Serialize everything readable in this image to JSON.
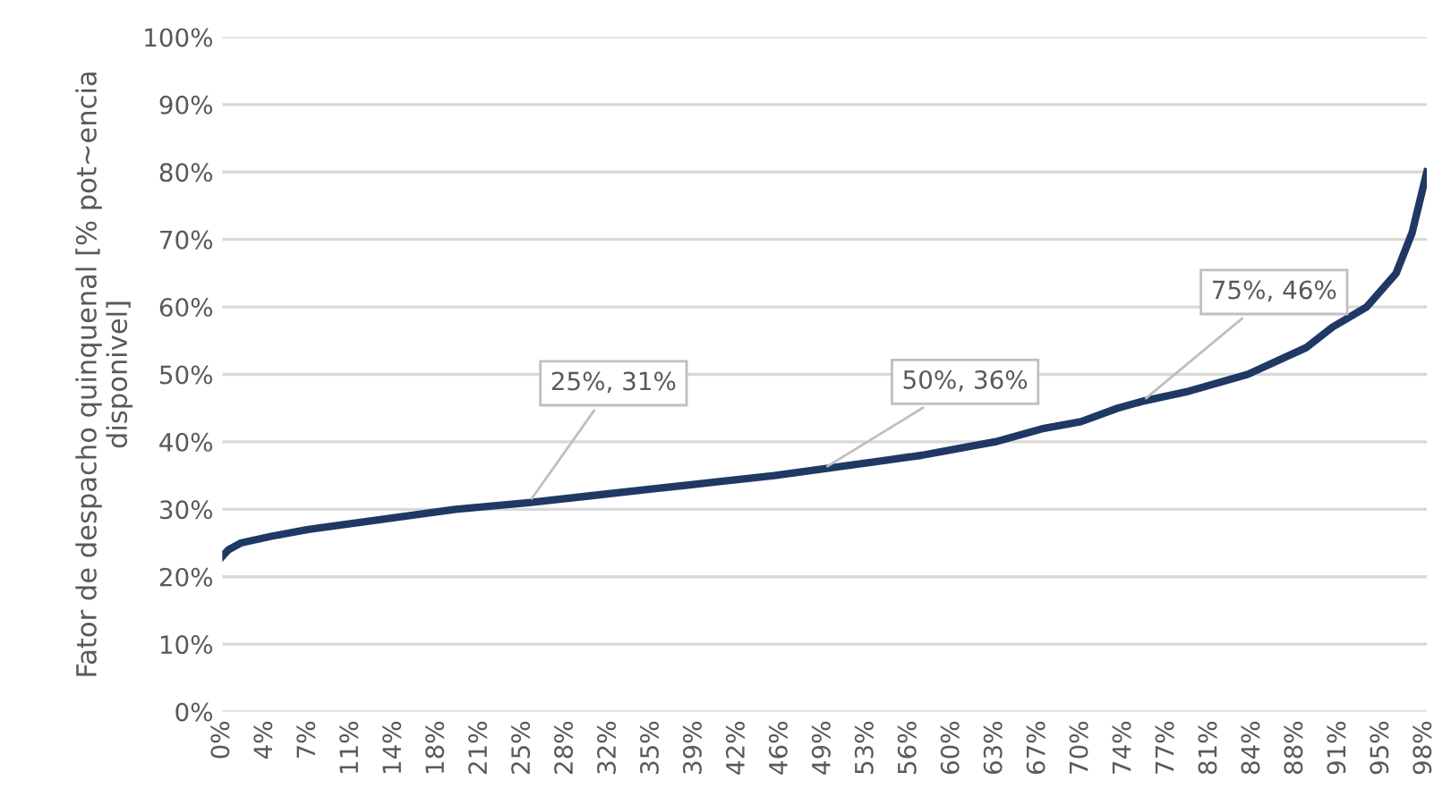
{
  "chart_data": {
    "type": "line",
    "ylabel": "Fator de despacho quinquenal [% pot~encia disponivel]",
    "x": [
      0,
      0.5,
      1.5,
      4,
      7,
      11,
      15,
      19,
      25,
      30,
      35,
      40,
      45,
      49,
      53,
      57,
      60,
      63,
      67,
      70,
      73,
      75,
      78.8,
      83.6,
      88.4,
      90.5,
      93.3,
      95.7,
      97,
      98.2
    ],
    "series": [
      {
        "color": "#1f3864",
        "values": [
          23,
          24,
          25,
          26,
          27,
          28,
          29,
          30,
          31,
          32,
          33,
          34,
          35,
          36,
          37,
          38,
          39,
          40,
          42,
          43,
          45,
          46,
          47.5,
          50,
          54,
          57,
          60,
          65,
          71,
          80
        ]
      }
    ],
    "xlim": [
      0,
      98.2
    ],
    "xticks": [
      {
        "value": 0,
        "label": "0%"
      },
      {
        "value": 3.5,
        "label": "4%"
      },
      {
        "value": 7,
        "label": "7%"
      },
      {
        "value": 10.5,
        "label": "11%"
      },
      {
        "value": 14,
        "label": "14%"
      },
      {
        "value": 17.5,
        "label": "18%"
      },
      {
        "value": 21,
        "label": "21%"
      },
      {
        "value": 24.5,
        "label": "25%"
      },
      {
        "value": 28,
        "label": "28%"
      },
      {
        "value": 31.5,
        "label": "32%"
      },
      {
        "value": 35,
        "label": "35%"
      },
      {
        "value": 38.5,
        "label": "39%"
      },
      {
        "value": 42,
        "label": "42%"
      },
      {
        "value": 45.5,
        "label": "46%"
      },
      {
        "value": 49,
        "label": "49%"
      },
      {
        "value": 52.5,
        "label": "53%"
      },
      {
        "value": 56,
        "label": "56%"
      },
      {
        "value": 59.5,
        "label": "60%"
      },
      {
        "value": 63,
        "label": "63%"
      },
      {
        "value": 66.5,
        "label": "67%"
      },
      {
        "value": 70,
        "label": "70%"
      },
      {
        "value": 73.5,
        "label": "74%"
      },
      {
        "value": 77,
        "label": "77%"
      },
      {
        "value": 80.5,
        "label": "81%"
      },
      {
        "value": 84,
        "label": "84%"
      },
      {
        "value": 87.5,
        "label": "88%"
      },
      {
        "value": 91,
        "label": "91%"
      },
      {
        "value": 94.5,
        "label": "95%"
      },
      {
        "value": 98,
        "label": "98%"
      }
    ],
    "ylim": [
      0,
      100
    ],
    "yticks": [
      {
        "value": 0,
        "label": "0%"
      },
      {
        "value": 10,
        "label": "10%"
      },
      {
        "value": 20,
        "label": "20%"
      },
      {
        "value": 30,
        "label": "30%"
      },
      {
        "value": 40,
        "label": "40%"
      },
      {
        "value": 50,
        "label": "50%"
      },
      {
        "value": 60,
        "label": "60%"
      },
      {
        "value": 70,
        "label": "70%"
      },
      {
        "value": 80,
        "label": "80%"
      },
      {
        "value": 90,
        "label": "90%"
      },
      {
        "value": 100,
        "label": "100%"
      }
    ],
    "grid": "y",
    "marker": "none",
    "line_style": "solid",
    "annotations": [
      {
        "text": "25%, 31%",
        "x": 25,
        "y": 31
      },
      {
        "text": "50%, 36%",
        "x": 49,
        "y": 36
      },
      {
        "text": "75%, 46%",
        "x": 75,
        "y": 46
      }
    ]
  }
}
